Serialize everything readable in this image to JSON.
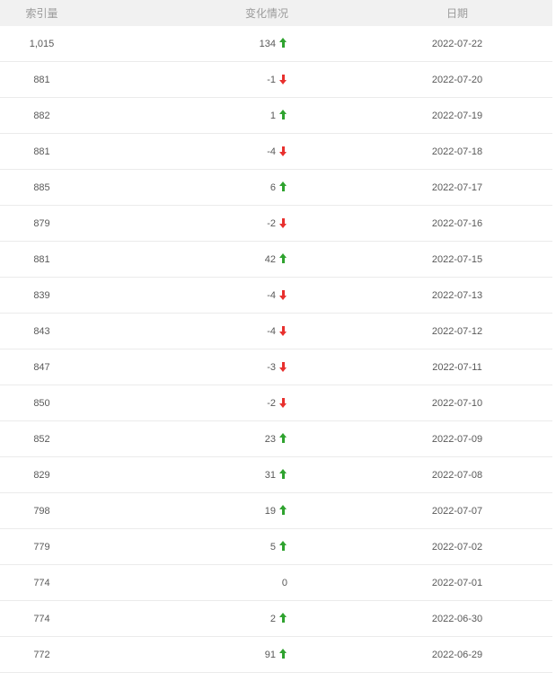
{
  "table": {
    "columns": [
      {
        "key": "index",
        "label": "索引量"
      },
      {
        "key": "change",
        "label": "变化情况"
      },
      {
        "key": "date",
        "label": "日期"
      }
    ],
    "rows": [
      {
        "index": "1,015",
        "change": "134",
        "direction": "up",
        "date": "2022-07-22"
      },
      {
        "index": "881",
        "change": "-1",
        "direction": "down",
        "date": "2022-07-20"
      },
      {
        "index": "882",
        "change": "1",
        "direction": "up",
        "date": "2022-07-19"
      },
      {
        "index": "881",
        "change": "-4",
        "direction": "down",
        "date": "2022-07-18"
      },
      {
        "index": "885",
        "change": "6",
        "direction": "up",
        "date": "2022-07-17"
      },
      {
        "index": "879",
        "change": "-2",
        "direction": "down",
        "date": "2022-07-16"
      },
      {
        "index": "881",
        "change": "42",
        "direction": "up",
        "date": "2022-07-15"
      },
      {
        "index": "839",
        "change": "-4",
        "direction": "down",
        "date": "2022-07-13"
      },
      {
        "index": "843",
        "change": "-4",
        "direction": "down",
        "date": "2022-07-12"
      },
      {
        "index": "847",
        "change": "-3",
        "direction": "down",
        "date": "2022-07-11"
      },
      {
        "index": "850",
        "change": "-2",
        "direction": "down",
        "date": "2022-07-10"
      },
      {
        "index": "852",
        "change": "23",
        "direction": "up",
        "date": "2022-07-09"
      },
      {
        "index": "829",
        "change": "31",
        "direction": "up",
        "date": "2022-07-08"
      },
      {
        "index": "798",
        "change": "19",
        "direction": "up",
        "date": "2022-07-07"
      },
      {
        "index": "779",
        "change": "5",
        "direction": "up",
        "date": "2022-07-02"
      },
      {
        "index": "774",
        "change": "0",
        "direction": "none",
        "date": "2022-07-01"
      },
      {
        "index": "774",
        "change": "2",
        "direction": "up",
        "date": "2022-06-30"
      },
      {
        "index": "772",
        "change": "91",
        "direction": "up",
        "date": "2022-06-29"
      }
    ]
  },
  "colors": {
    "up": "#2fa32f",
    "down": "#e8302e",
    "header_bg": "#f1f1f1",
    "header_text": "#9b9b9b",
    "cell_text": "#595959",
    "divider": "#ebebeb"
  }
}
